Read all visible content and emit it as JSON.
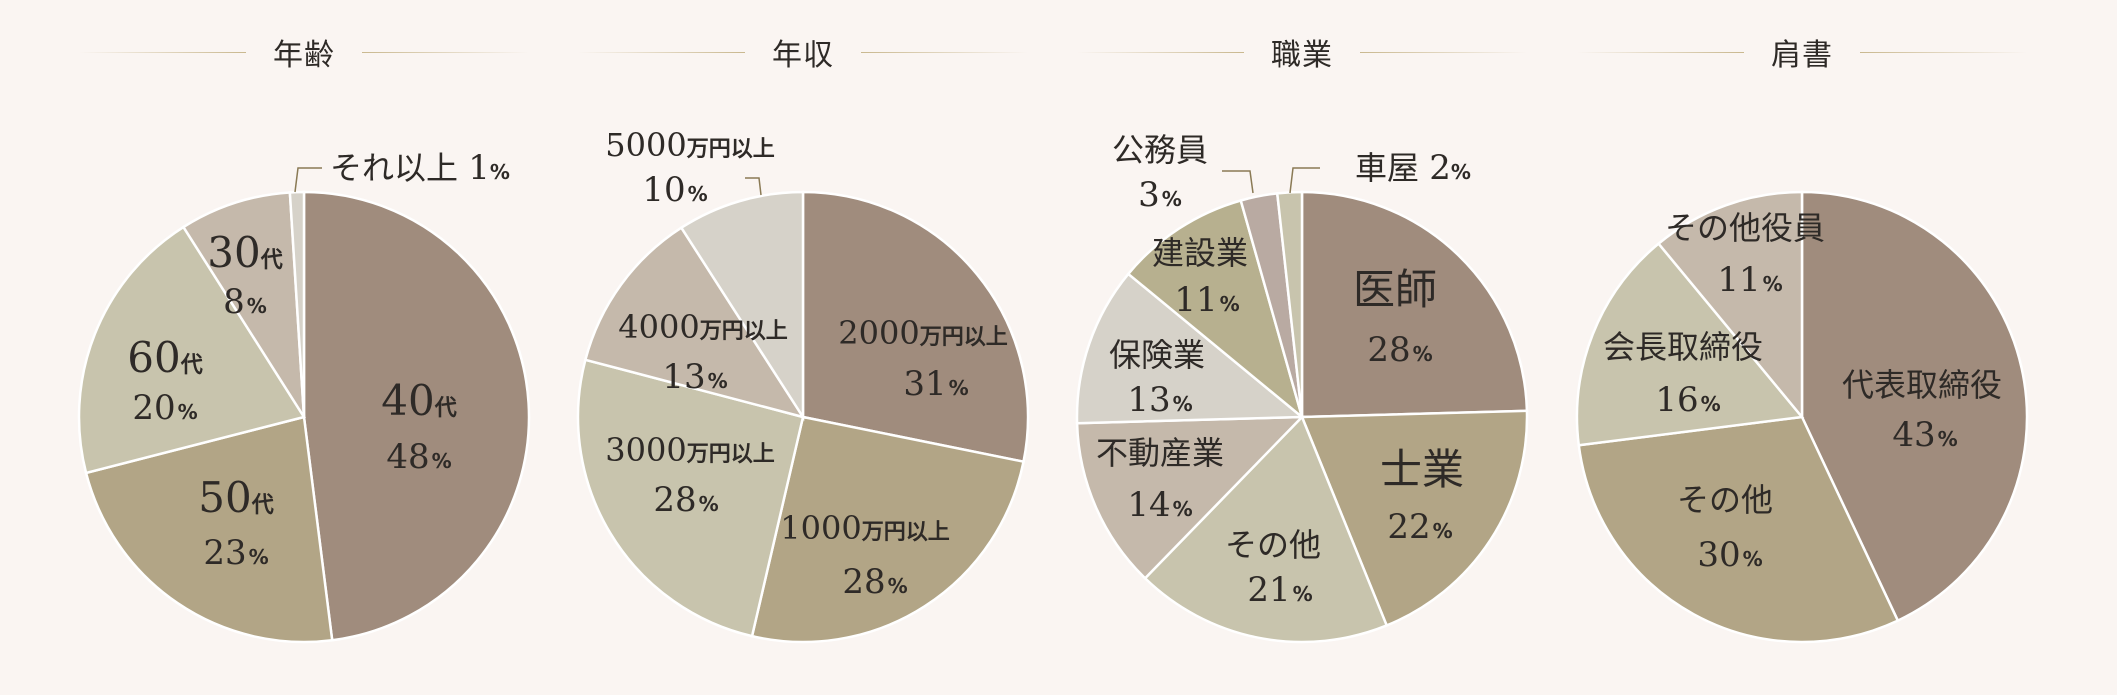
{
  "colors": {
    "background": "#faf5f2",
    "rule": "#c9b88f",
    "slice_border": "#ffffff"
  },
  "chart_data": [
    {
      "type": "pie",
      "title": "年齢",
      "percent_sign": "%",
      "slices": [
        {
          "label": "40",
          "suffix": "代",
          "value": 48,
          "color": "#a08c7d"
        },
        {
          "label": "50",
          "suffix": "代",
          "value": 23,
          "color": "#b2a586"
        },
        {
          "label": "60",
          "suffix": "代",
          "value": 20,
          "color": "#c8c4ad"
        },
        {
          "label": "30",
          "suffix": "代",
          "value": 8,
          "color": "#c5b9ab"
        },
        {
          "label": "それ以上",
          "suffix": "",
          "value": 1,
          "color": "#d6d2c9"
        }
      ]
    },
    {
      "type": "pie",
      "title": "年収",
      "percent_sign": "%",
      "slices": [
        {
          "label": "2000",
          "suffix": "万円以上",
          "value": 31,
          "color": "#a08c7d"
        },
        {
          "label": "1000",
          "suffix": "万円以上",
          "value": 28,
          "color": "#b2a586"
        },
        {
          "label": "3000",
          "suffix": "万円以上",
          "value": 28,
          "color": "#c8c4ad"
        },
        {
          "label": "4000",
          "suffix": "万円以上",
          "value": 13,
          "color": "#c5b9ab"
        },
        {
          "label": "5000",
          "suffix": "万円以上",
          "value": 10,
          "color": "#d6d2c9"
        }
      ]
    },
    {
      "type": "pie",
      "title": "職業",
      "percent_sign": "%",
      "slices": [
        {
          "label": "医師",
          "suffix": "",
          "value": 28,
          "color": "#a08c7d"
        },
        {
          "label": "士業",
          "suffix": "",
          "value": 22,
          "color": "#b2a586"
        },
        {
          "label": "その他",
          "suffix": "",
          "value": 21,
          "color": "#c8c4ad"
        },
        {
          "label": "不動産業",
          "suffix": "",
          "value": 14,
          "color": "#c5b9ab"
        },
        {
          "label": "保険業",
          "suffix": "",
          "value": 13,
          "color": "#d6d2c9"
        },
        {
          "label": "建設業",
          "suffix": "",
          "value": 11,
          "color": "#b7b08f"
        },
        {
          "label": "公務員",
          "suffix": "",
          "value": 3,
          "color": "#b9aaa2"
        },
        {
          "label": "車屋",
          "suffix": "",
          "value": 2,
          "color": "#c8c4ad"
        }
      ]
    },
    {
      "type": "pie",
      "title": "肩書",
      "percent_sign": "%",
      "slices": [
        {
          "label": "代表取締役",
          "suffix": "",
          "value": 43,
          "color": "#a08c7d"
        },
        {
          "label": "その他",
          "suffix": "",
          "value": 30,
          "color": "#b2a586"
        },
        {
          "label": "会長取締役",
          "suffix": "",
          "value": 16,
          "color": "#c8c4ad"
        },
        {
          "label": "その他役員",
          "suffix": "",
          "value": 11,
          "color": "#c5b9ab"
        }
      ]
    }
  ]
}
